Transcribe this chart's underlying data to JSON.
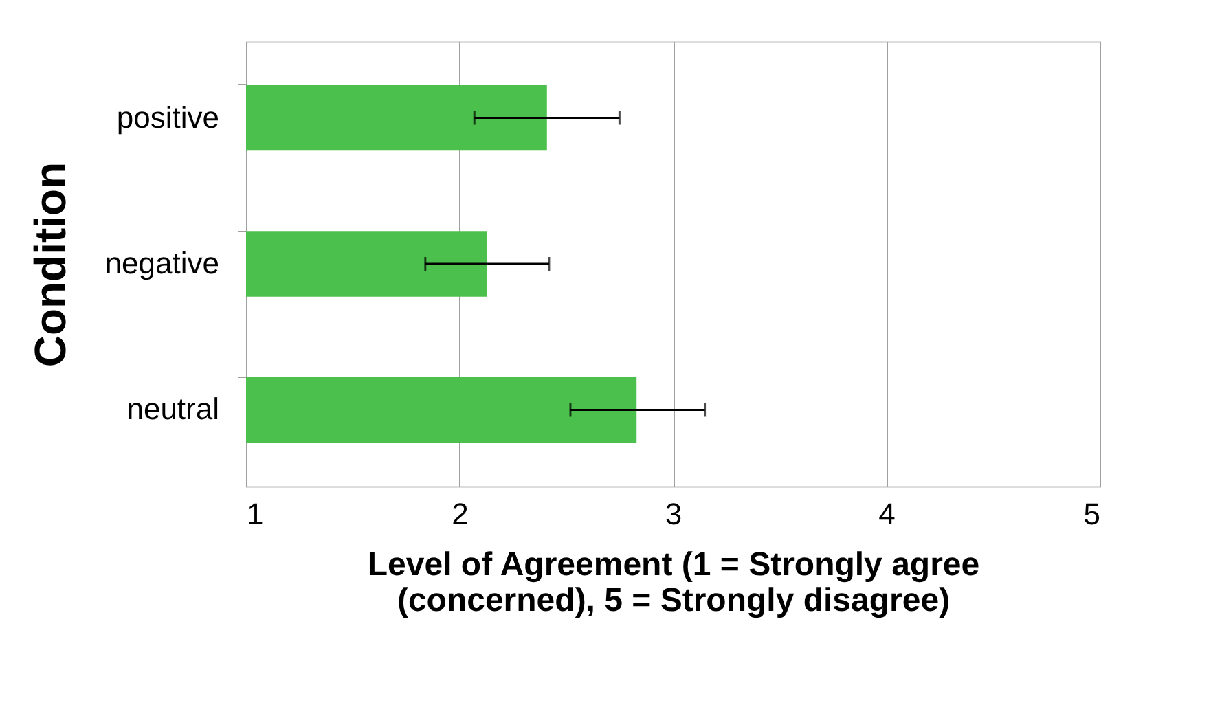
{
  "chart_data": {
    "type": "bar",
    "orientation": "horizontal",
    "categories": [
      "positive",
      "negative",
      "neutral"
    ],
    "values": [
      2.41,
      2.13,
      2.83
    ],
    "errors": [
      [
        2.07,
        2.75
      ],
      [
        1.84,
        2.42
      ],
      [
        2.52,
        3.15
      ]
    ],
    "color": "#4cc04c",
    "xlim": [
      1,
      5
    ],
    "xticks": [
      1,
      2,
      3,
      4,
      5
    ],
    "xlabel": "Level of Agreement (1 = Strongly agree (concerned), 5 = Strongly disagree)",
    "ylabel": "Condition",
    "grid": "x"
  }
}
